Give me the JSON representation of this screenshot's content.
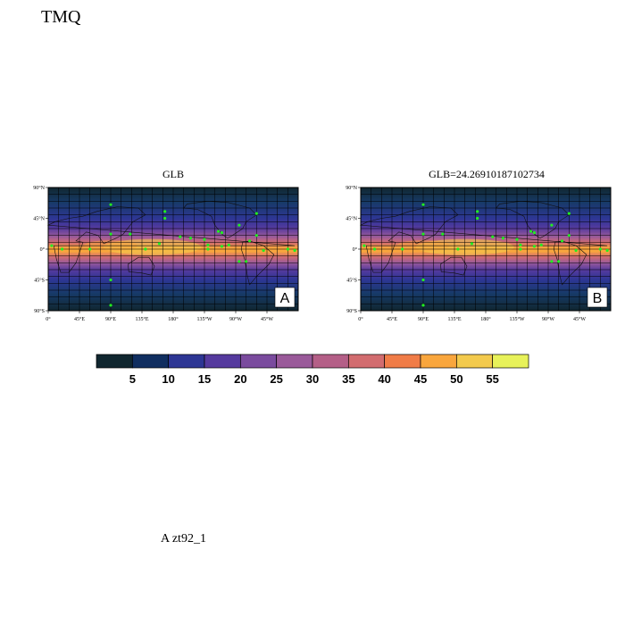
{
  "page": {
    "title": "TMQ",
    "footer": "A  zt92_1"
  },
  "panels": [
    {
      "title": "GLB",
      "letter": "A"
    },
    {
      "title": "GLB=24.26910187102734",
      "letter": "B"
    }
  ],
  "axes": {
    "lat_labels": [
      "90°N",
      "45°N",
      "0°",
      "45°S",
      "90°S"
    ],
    "lon_labels": [
      "0°",
      "45°E",
      "90°E",
      "135°E",
      "180°",
      "135°W",
      "90°W",
      "45°W"
    ]
  },
  "colorbar": {
    "colors": [
      "#10262f",
      "#102e60",
      "#2d3694",
      "#553a9e",
      "#7a4b9e",
      "#9a5a9a",
      "#b45f87",
      "#d26c6f",
      "#f07c47",
      "#f9a63d",
      "#f3ca4d",
      "#e8f25a"
    ],
    "labels": [
      "5",
      "10",
      "15",
      "20",
      "25",
      "30",
      "35",
      "40",
      "45",
      "50",
      "55"
    ]
  },
  "markers": {
    "color": "#22ee22",
    "points": [
      [
        90,
        65
      ],
      [
        90,
        22
      ],
      [
        118,
        22
      ],
      [
        168,
        55
      ],
      [
        168,
        45
      ],
      [
        190,
        18
      ],
      [
        205,
        16
      ],
      [
        225,
        14
      ],
      [
        230,
        6
      ],
      [
        245,
        26
      ],
      [
        250,
        24
      ],
      [
        275,
        35
      ],
      [
        290,
        12
      ],
      [
        310,
        -2
      ],
      [
        275,
        -18
      ],
      [
        285,
        -18
      ],
      [
        300,
        52
      ],
      [
        90,
        -45
      ],
      [
        90,
        -82
      ],
      [
        20,
        0
      ],
      [
        60,
        0
      ],
      [
        140,
        0
      ],
      [
        160,
        8
      ],
      [
        230,
        0
      ],
      [
        250,
        4
      ],
      [
        260,
        6
      ],
      [
        345,
        0
      ],
      [
        355,
        -2
      ],
      [
        5,
        5
      ],
      [
        300,
        20
      ]
    ]
  }
}
